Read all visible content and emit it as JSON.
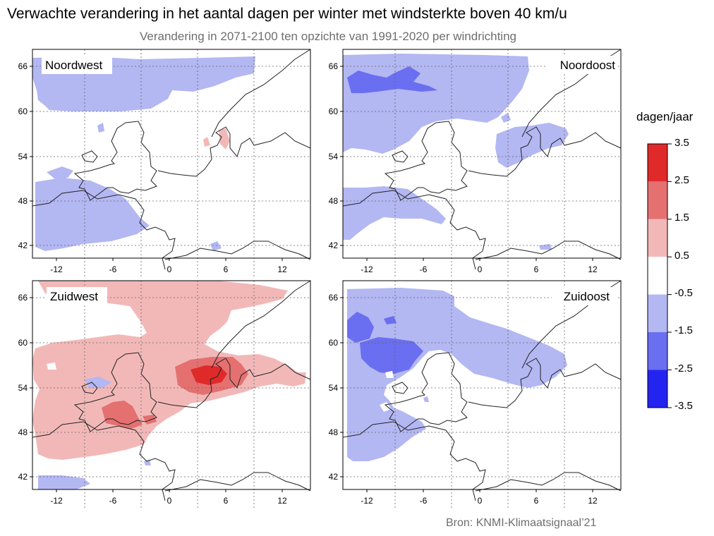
{
  "title": "Verwachte verandering in het aantal dagen per winter met windsterkte boven 40 km/u",
  "subtitle": "Verandering in 2071-2100 ten opzichte van 1991-2020 per windrichting",
  "axes": {
    "lon_ticks": [
      "-12",
      "-6",
      "0",
      "6",
      "12"
    ],
    "lat_ticks": [
      "66",
      "60",
      "54",
      "48",
      "42"
    ]
  },
  "panels": [
    {
      "label": "Noordwest"
    },
    {
      "label": "Noordoost"
    },
    {
      "label": "Zuidwest"
    },
    {
      "label": "Zuidoost"
    }
  ],
  "colorbar": {
    "unit": "dagen/jaar",
    "ticks": [
      "3.5",
      "2.5",
      "1.5",
      "0.5",
      "-0.5",
      "-1.5",
      "-2.5",
      "-3.5"
    ],
    "colors": [
      "#e02a2a",
      "#e57070",
      "#f2b8b8",
      "#ffffff",
      "#b3b7f2",
      "#6a6ef0",
      "#2424f0"
    ]
  },
  "source": "Bron: KNMI-Klimaatsignaal’21"
}
